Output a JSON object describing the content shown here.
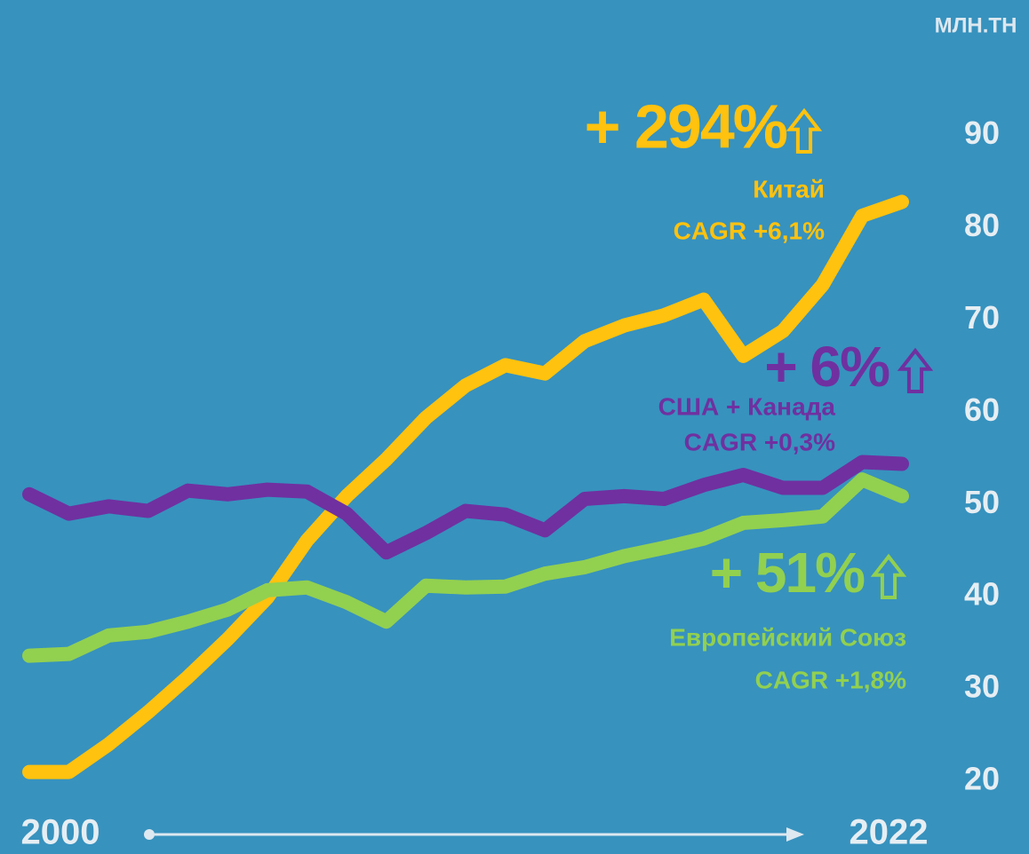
{
  "chart_data": {
    "type": "line",
    "unit_label": "МЛН.ТН",
    "x": [
      2000,
      2001,
      2002,
      2003,
      2004,
      2005,
      2006,
      2007,
      2008,
      2009,
      2010,
      2011,
      2012,
      2013,
      2014,
      2015,
      2016,
      2017,
      2018,
      2019,
      2020,
      2021,
      2022
    ],
    "xlim": [
      2000,
      2022
    ],
    "xticks": [
      2000,
      2022
    ],
    "ylim": [
      20,
      90
    ],
    "yticks": [
      20,
      30,
      40,
      50,
      60,
      70,
      80,
      90
    ],
    "series": [
      {
        "name": "Китай",
        "change": "+ 294%",
        "cagr": "CAGR +6,1%",
        "color": "#ffc20e",
        "values": [
          21.0,
          21.0,
          24.0,
          27.5,
          31.3,
          35.4,
          39.9,
          46.1,
          50.9,
          54.9,
          59.4,
          62.9,
          65.1,
          64.2,
          67.7,
          69.4,
          70.5,
          72.2,
          66.1,
          68.8,
          73.8,
          81.3,
          82.8
        ]
      },
      {
        "name": "США + Канада",
        "change": "+ 6%",
        "cagr": "CAGR +0,3%",
        "color": "#7030a0",
        "values": [
          51.1,
          49.0,
          49.8,
          49.3,
          51.5,
          51.1,
          51.6,
          51.4,
          49.0,
          44.8,
          46.9,
          49.3,
          48.9,
          47.2,
          50.6,
          50.9,
          50.6,
          52.1,
          53.2,
          51.8,
          51.8,
          54.6,
          54.4
        ]
      },
      {
        "name": "Европейский Союз",
        "change": "+ 51%",
        "cagr": "CAGR +1,8%",
        "color": "#92d050",
        "values": [
          33.6,
          33.8,
          35.8,
          36.2,
          37.3,
          38.6,
          40.7,
          41.0,
          39.4,
          37.3,
          41.2,
          41.0,
          41.1,
          42.5,
          43.2,
          44.4,
          45.3,
          46.3,
          48.0,
          48.3,
          48.7,
          52.7,
          50.9
        ]
      }
    ]
  }
}
